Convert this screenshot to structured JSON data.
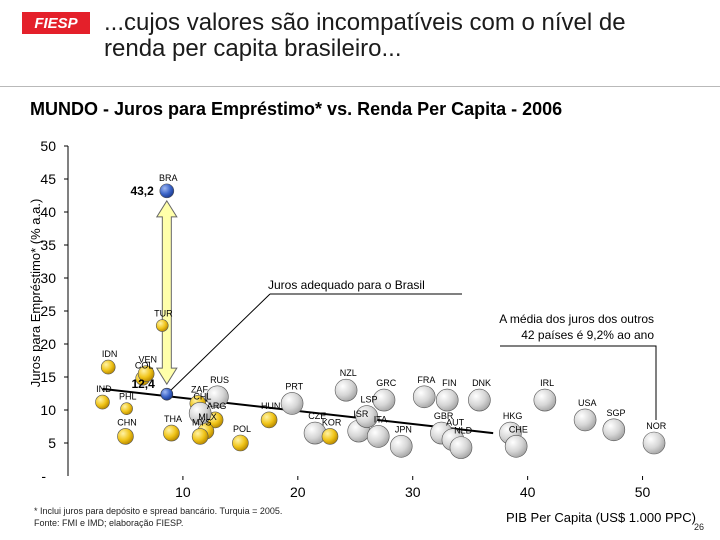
{
  "header": {
    "logo_text": "FIESP",
    "title_line1": "...cujos valores são incompatíveis com o nível de",
    "title_line2": "renda per capita brasileiro..."
  },
  "chart_data": {
    "type": "scatter",
    "title": "MUNDO - Juros para Empréstimo* vs. Renda Per Capita - 2006",
    "xlabel": "PIB Per Capita (US$ 1.000 PPC)",
    "ylabel": "Juros para Empréstimo* (% a.a.)",
    "xlim": [
      0,
      55
    ],
    "ylim": [
      0,
      50
    ],
    "x_ticks": [
      10,
      20,
      30,
      40,
      50
    ],
    "y_ticks": [
      5,
      10,
      15,
      20,
      25,
      30,
      35,
      40,
      45,
      50
    ],
    "y_tick_extra": "-",
    "grid": false,
    "colors": {
      "brazil": "#3a63c7",
      "emerging": "#f0c419",
      "developed": "#d3d3d3",
      "trend_line": "#000000",
      "arrow": "#ffffaa"
    },
    "points": [
      {
        "label": "BRA",
        "x": 8.6,
        "y": 43.2,
        "group": "brazil"
      },
      {
        "label": "TUR",
        "x": 8.2,
        "y": 22.8,
        "group": "emerging"
      },
      {
        "label": "IDN",
        "x": 3.5,
        "y": 16.5,
        "group": "emerging"
      },
      {
        "label": "COL",
        "x": 6.5,
        "y": 14.8,
        "group": "emerging"
      },
      {
        "label": "VEN",
        "x": 6.8,
        "y": 15.5,
        "group": "emerging"
      },
      {
        "label": "IND",
        "x": 3.0,
        "y": 11.2,
        "group": "emerging"
      },
      {
        "label": "PHL",
        "x": 5.1,
        "y": 10.2,
        "group": "emerging"
      },
      {
        "label": "ZAF",
        "x": 11.3,
        "y": 11.0,
        "group": "emerging"
      },
      {
        "label": "CHN",
        "x": 5.0,
        "y": 6.0,
        "group": "emerging"
      },
      {
        "label": "THA",
        "x": 9.0,
        "y": 6.5,
        "group": "emerging"
      },
      {
        "label": "ARG",
        "x": 12.8,
        "y": 8.5,
        "group": "emerging"
      },
      {
        "label": "MLX",
        "x": 12.0,
        "y": 6.8,
        "group": "emerging"
      },
      {
        "label": "MYS",
        "x": 11.5,
        "y": 6.0,
        "group": "emerging"
      },
      {
        "label": "POL",
        "x": 15.0,
        "y": 5.0,
        "group": "emerging"
      },
      {
        "label": "RUS",
        "x": 13.0,
        "y": 12.0,
        "group": "developed"
      },
      {
        "label": "CHL",
        "x": 11.5,
        "y": 9.5,
        "group": "developed"
      },
      {
        "label": "HUN",
        "x": 17.5,
        "y": 8.5,
        "group": "emerging"
      },
      {
        "label": "CZE",
        "x": 21.5,
        "y": 6.5,
        "group": "developed"
      },
      {
        "label": "PRT",
        "x": 19.5,
        "y": 11.0,
        "group": "developed"
      },
      {
        "label": "NZL",
        "x": 24.2,
        "y": 13.0,
        "group": "developed"
      },
      {
        "label": "KOR",
        "x": 22.8,
        "y": 6.0,
        "group": "emerging"
      },
      {
        "label": "ISR",
        "x": 25.3,
        "y": 6.8,
        "group": "developed"
      },
      {
        "label": "LSP",
        "x": 26.0,
        "y": 9.0,
        "group": "developed"
      },
      {
        "label": "GRC",
        "x": 27.5,
        "y": 11.5,
        "group": "developed"
      },
      {
        "label": "ITA",
        "x": 27.0,
        "y": 6.0,
        "group": "developed"
      },
      {
        "label": "JPN",
        "x": 29.0,
        "y": 4.5,
        "group": "developed"
      },
      {
        "label": "FRA",
        "x": 31.0,
        "y": 12.0,
        "group": "developed"
      },
      {
        "label": "FIN",
        "x": 33.0,
        "y": 11.5,
        "group": "developed"
      },
      {
        "label": "GBR",
        "x": 32.5,
        "y": 6.5,
        "group": "developed"
      },
      {
        "label": "AUT",
        "x": 33.5,
        "y": 5.5,
        "group": "developed"
      },
      {
        "label": "NLD",
        "x": 34.2,
        "y": 4.3,
        "group": "developed"
      },
      {
        "label": "DNK",
        "x": 35.8,
        "y": 11.5,
        "group": "developed"
      },
      {
        "label": "IRL",
        "x": 41.5,
        "y": 11.5,
        "group": "developed"
      },
      {
        "label": "USA",
        "x": 45.0,
        "y": 8.5,
        "group": "developed"
      },
      {
        "label": "HKG",
        "x": 38.5,
        "y": 6.5,
        "group": "developed"
      },
      {
        "label": "CHE",
        "x": 39.0,
        "y": 4.5,
        "group": "developed"
      },
      {
        "label": "SGP",
        "x": 47.5,
        "y": 7.0,
        "group": "developed"
      },
      {
        "label": "NOR",
        "x": 51.0,
        "y": 5.0,
        "group": "developed"
      }
    ],
    "point_value_labels": [
      {
        "label": "43,2",
        "x": 8.6,
        "y": 43.2
      },
      {
        "label": "12,4",
        "x": 8.6,
        "y": 12.4
      }
    ],
    "trend_line": {
      "x": [
        3,
        37
      ],
      "y": [
        13.2,
        6.5
      ]
    },
    "annotations": [
      {
        "text": "Juros adequado para o Brasil",
        "x": 8.6,
        "y": 12.4
      },
      {
        "text_line1": "A média dos juros dos outros",
        "text_line2": "42 países é 9,2% ao ano"
      }
    ],
    "footnote_line1": "* Inclui juros para depósito e spread bancário. Turquia = 2005.",
    "footnote_line2": "Fonte: FMI e IMD; elaboração FIESP.",
    "page_number": "26"
  }
}
